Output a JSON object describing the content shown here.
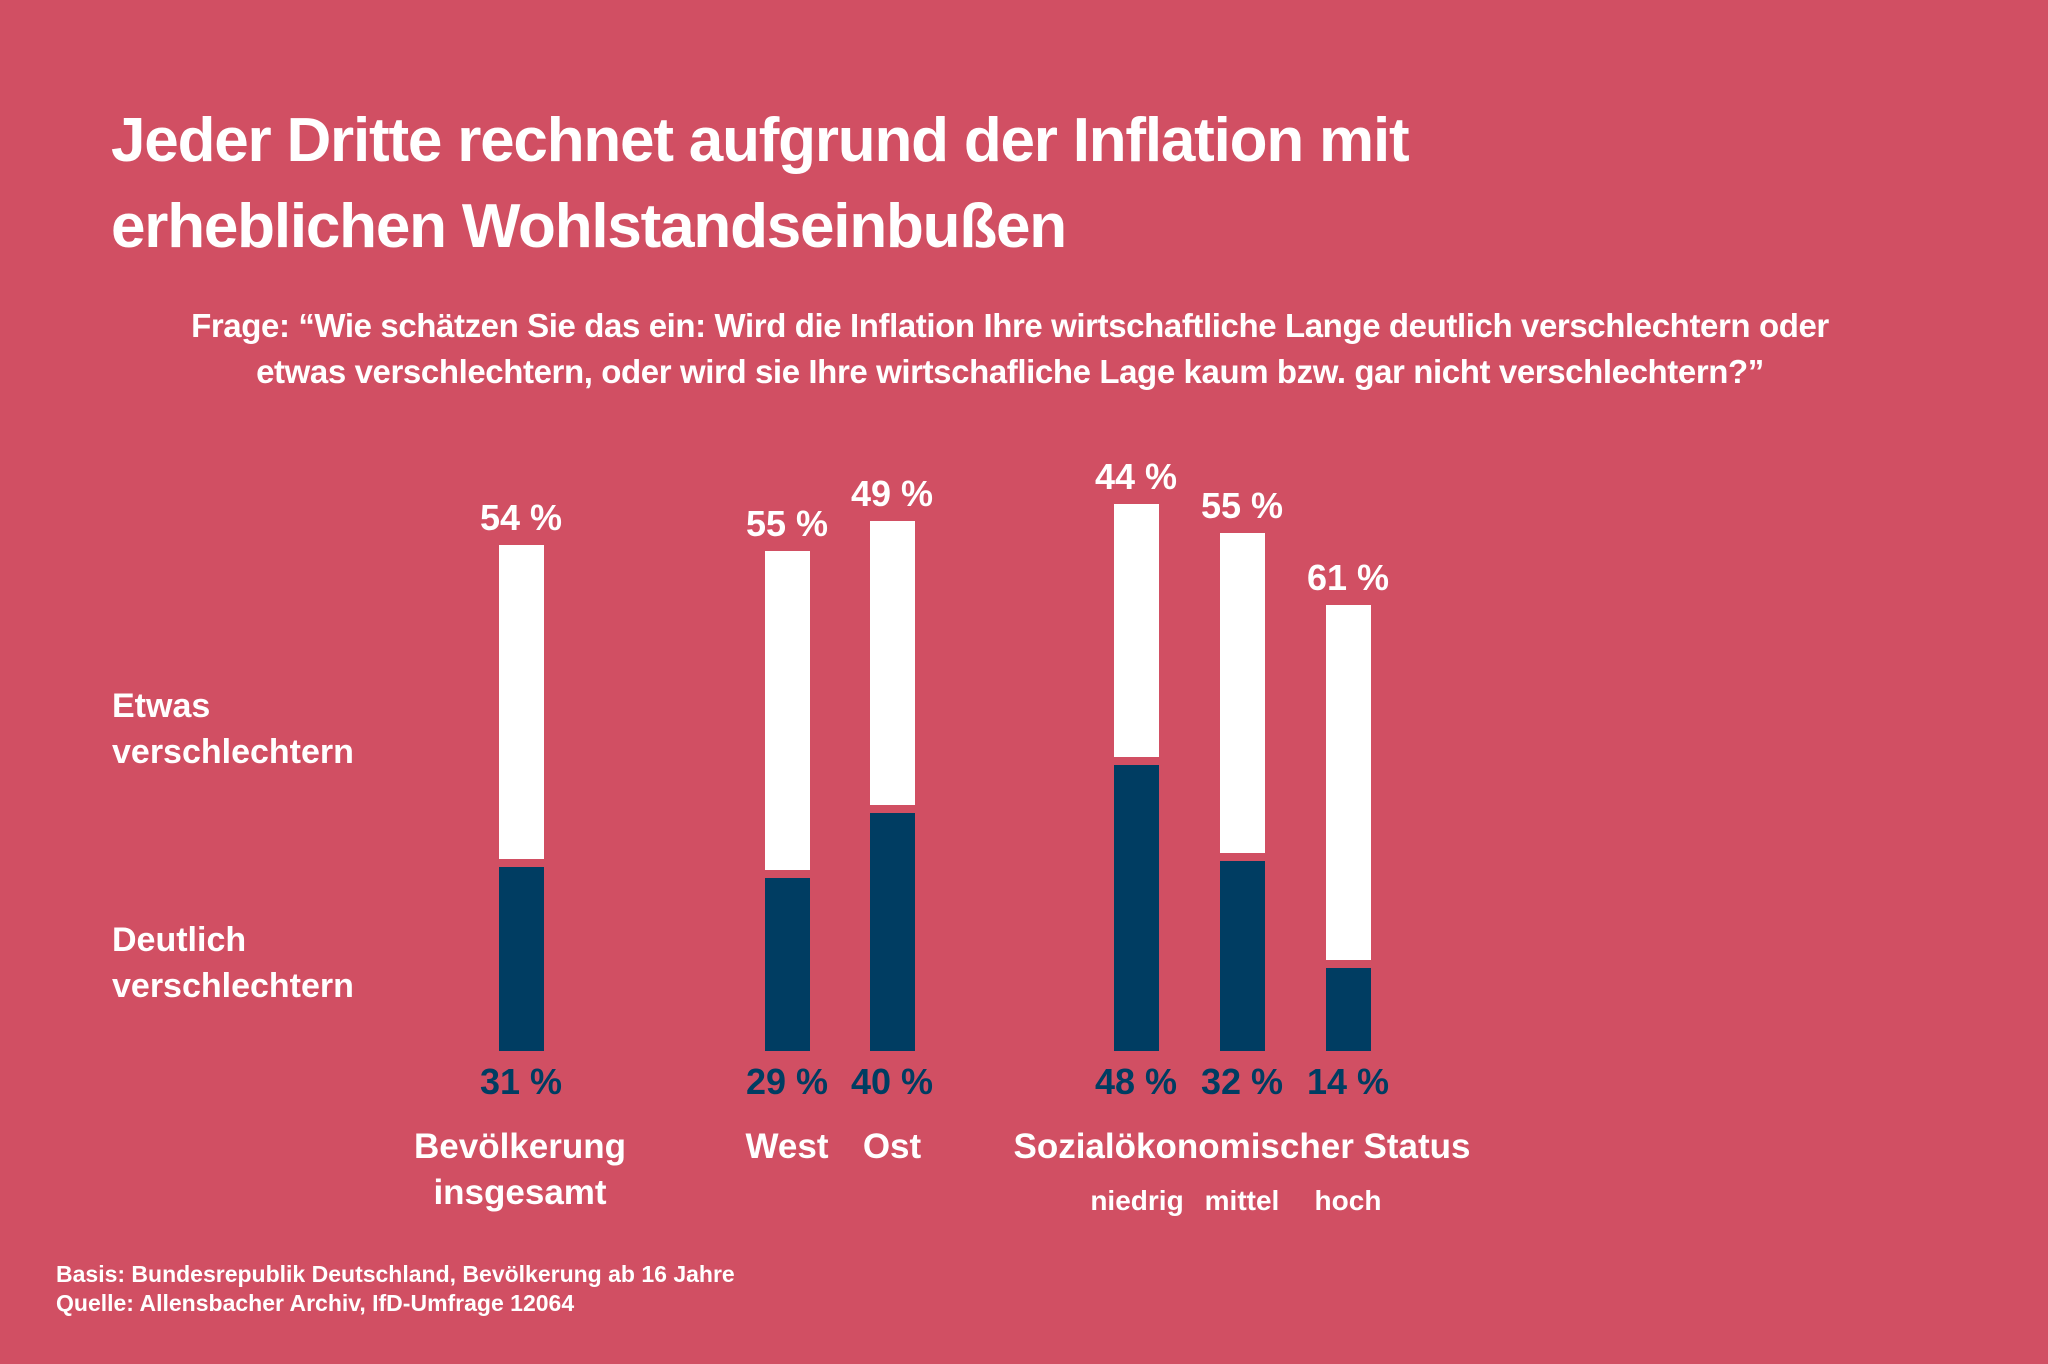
{
  "title_lines": [
    "Jeder Dritte rechnet aufgrund der Inflation mit",
    "erheblichen Wohlstandseinbußen"
  ],
  "question_lines": [
    "Frage: “Wie schätzen Sie das ein: Wird die Inflation Ihre wirtschaftliche Lange deutlich verschlechtern oder",
    "etwas verschlechtern, oder wird sie Ihre wirtschafliche Lage kaum bzw. gar nicht verschlechtern?”"
  ],
  "legend": {
    "etwas": [
      "Etwas",
      "verschlechtern"
    ],
    "deutlich": [
      "Deutlich",
      "verschlechtern"
    ]
  },
  "colors": {
    "background": "#d14f63",
    "deutlich": "#003d62",
    "etwas": "#ffffff"
  },
  "chart_data": {
    "type": "bar",
    "stacked": true,
    "categories": [
      "Bevölkerung insgesamt",
      "West",
      "Ost",
      "niedrig",
      "mittel",
      "hoch"
    ],
    "groups": [
      {
        "label": [
          "Bevölkerung",
          "insgesamt"
        ],
        "members": [
          "Bevölkerung insgesamt"
        ]
      },
      {
        "label": [
          "West"
        ],
        "members": [
          "West"
        ]
      },
      {
        "label": [
          "Ost"
        ],
        "members": [
          "Ost"
        ]
      },
      {
        "label": [
          "Sozialökonomischer Status"
        ],
        "members": [
          "niedrig",
          "mittel",
          "hoch"
        ]
      }
    ],
    "sub_labels": [
      "niedrig",
      "mittel",
      "hoch"
    ],
    "series": [
      {
        "name": "Deutlich verschlechtern",
        "values": [
          31,
          29,
          40,
          48,
          32,
          14
        ],
        "labels": [
          "31 %",
          "29 %",
          "40 %",
          "48 %",
          "32 %",
          "14 %"
        ]
      },
      {
        "name": "Etwas verschlechtern",
        "values": [
          54,
          55,
          49,
          44,
          55,
          61
        ],
        "labels": [
          "54 %",
          "55 %",
          "49 %",
          "44 %",
          "55 %",
          "61 %"
        ]
      }
    ],
    "unit": "%",
    "grid": false
  },
  "footer": [
    "Basis: Bundesrepublik Deutschland, Bevölkerung ab 16 Jahre",
    "Quelle: Allensbacher Archiv, IfD-Umfrage 12064"
  ]
}
